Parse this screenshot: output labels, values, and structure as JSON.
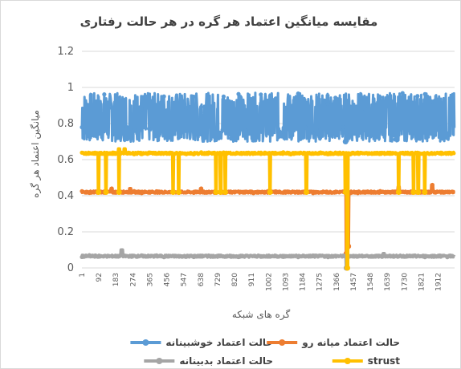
{
  "chart_data": {
    "type": "line",
    "title": "مقایسه میانگین اعتماد هر گره در هر حالت رفتاری",
    "xlabel": "گره های شبکه",
    "ylabel": "میانگین اعتماد هر گره",
    "ylim": [
      0,
      1.2
    ],
    "yticks": [
      "0",
      "0.2",
      "0.4",
      "0.6",
      "0.8",
      "1",
      "1.2"
    ],
    "xlim": [
      1,
      2000
    ],
    "xticks": [
      "1",
      "92",
      "183",
      "274",
      "365",
      "456",
      "547",
      "638",
      "729",
      "820",
      "911",
      "1002",
      "1093",
      "1184",
      "1275",
      "1366",
      "1457",
      "1548",
      "1639",
      "1730",
      "1821",
      "1912"
    ],
    "grid": "horizontal",
    "legend_position": "bottom",
    "series": [
      {
        "name": "حالت اعتماد خوشبینانه",
        "color": "#5b9bd5",
        "pattern": "band",
        "band_min": 0.7,
        "band_max": 0.97,
        "anomalies": [
          {
            "x": 1415,
            "y": 0.7
          }
        ]
      },
      {
        "name": "حالت اعتماد میانه رو",
        "color": "#ed7d31",
        "pattern": "flat",
        "base": 0.42,
        "bumps": [
          {
            "x": 160,
            "y": 0.44
          },
          {
            "x": 260,
            "y": 0.44
          },
          {
            "x": 640,
            "y": 0.44
          },
          {
            "x": 1700,
            "y": 0.45
          },
          {
            "x": 1880,
            "y": 0.46
          }
        ],
        "dips": [
          {
            "x": 1420,
            "y": 0.08
          },
          {
            "x": 1430,
            "y": 0.12
          }
        ]
      },
      {
        "name": "حالت اعتماد بدبینانه",
        "color": "#a5a5a5",
        "pattern": "flat",
        "base": 0.065,
        "bumps": [
          {
            "x": 215,
            "y": 0.1
          },
          {
            "x": 1620,
            "y": 0.08
          }
        ],
        "dips": [
          {
            "x": 1420,
            "y": 0.0
          }
        ]
      },
      {
        "name": "strust",
        "color": "#ffc000",
        "pattern": "flat",
        "base": 0.635,
        "bumps": [
          {
            "x": 200,
            "y": 0.66
          },
          {
            "x": 230,
            "y": 0.66
          }
        ],
        "drops": [
          {
            "x": 90,
            "y": 0.42
          },
          {
            "x": 130,
            "y": 0.42
          },
          {
            "x": 200,
            "y": 0.42
          },
          {
            "x": 490,
            "y": 0.42
          },
          {
            "x": 520,
            "y": 0.42
          },
          {
            "x": 720,
            "y": 0.42
          },
          {
            "x": 745,
            "y": 0.42
          },
          {
            "x": 770,
            "y": 0.42
          },
          {
            "x": 1010,
            "y": 0.42
          },
          {
            "x": 1205,
            "y": 0.42
          },
          {
            "x": 1415,
            "y": 0.42
          },
          {
            "x": 1425,
            "y": 0.0
          },
          {
            "x": 1700,
            "y": 0.42
          },
          {
            "x": 1780,
            "y": 0.42
          },
          {
            "x": 1805,
            "y": 0.42
          },
          {
            "x": 1840,
            "y": 0.42
          }
        ]
      }
    ]
  }
}
